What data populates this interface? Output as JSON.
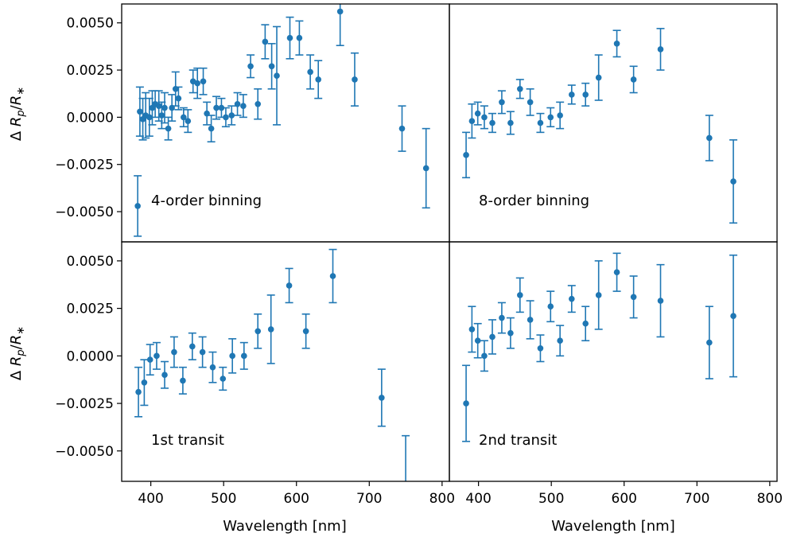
{
  "chart_data": {
    "type": "scatter",
    "layout": "2x2 grid, shared axes",
    "xlabel": "Wavelength [nm]",
    "ylabel": "Δ R_p/R_*",
    "xlim": [
      360,
      810
    ],
    "ylim": [
      -0.0066,
      0.006
    ],
    "xticks": [
      400,
      500,
      600,
      700,
      800
    ],
    "yticks": [
      0.005,
      0.0025,
      0.0,
      -0.0025,
      -0.005
    ],
    "ytick_labels": [
      "0.0050",
      "0.0025",
      "0.0000",
      "−0.0025",
      "−0.0050"
    ],
    "color": "#1f77b4",
    "panels": [
      {
        "label": "4-order binning",
        "points": [
          [
            382,
            -0.0047,
            0.0016
          ],
          [
            385,
            0.0003,
            0.0013
          ],
          [
            389,
            -0.0001,
            0.0011
          ],
          [
            393,
            0.0001,
            0.0012
          ],
          [
            398,
            0.0,
            0.001
          ],
          [
            402,
            0.0005,
            0.0009
          ],
          [
            406,
            0.0007,
            0.0007
          ],
          [
            411,
            0.0006,
            0.0008
          ],
          [
            415,
            0.0001,
            0.0007
          ],
          [
            419,
            0.0005,
            0.0008
          ],
          [
            424,
            -0.0006,
            0.0006
          ],
          [
            429,
            0.0005,
            0.0007
          ],
          [
            434,
            0.0015,
            0.0009
          ],
          [
            438,
            0.001,
            0.0006
          ],
          [
            445,
            0.0,
            0.0005
          ],
          [
            451,
            -0.0002,
            0.0006
          ],
          [
            458,
            0.0019,
            0.0006
          ],
          [
            464,
            0.0018,
            0.0008
          ],
          [
            472,
            0.0019,
            0.0007
          ],
          [
            477,
            0.0002,
            0.0006
          ],
          [
            483,
            -0.0006,
            0.0007
          ],
          [
            490,
            0.0005,
            0.0006
          ],
          [
            497,
            0.0005,
            0.0005
          ],
          [
            503,
            0.0,
            0.0005
          ],
          [
            511,
            0.0001,
            0.0005
          ],
          [
            519,
            0.0007,
            0.0006
          ],
          [
            527,
            0.0006,
            0.0006
          ],
          [
            537,
            0.0027,
            0.0006
          ],
          [
            547,
            0.0007,
            0.0008
          ],
          [
            557,
            0.004,
            0.0009
          ],
          [
            566,
            0.0027,
            0.0012
          ],
          [
            573,
            0.0022,
            0.0026
          ],
          [
            591,
            0.0042,
            0.0011
          ],
          [
            604,
            0.0042,
            0.0009
          ],
          [
            619,
            0.0024,
            0.0009
          ],
          [
            630,
            0.002,
            0.001
          ],
          [
            660,
            0.0056,
            0.0018
          ],
          [
            680,
            0.002,
            0.0014
          ],
          [
            745,
            -0.0006,
            0.0012
          ],
          [
            778,
            -0.0027,
            0.0021
          ]
        ]
      },
      {
        "label": "8-order binning",
        "points": [
          [
            383,
            -0.002,
            0.0012
          ],
          [
            391,
            -0.0002,
            0.0009
          ],
          [
            399,
            0.0002,
            0.0006
          ],
          [
            408,
            0.0,
            0.0006
          ],
          [
            419,
            -0.0003,
            0.0005
          ],
          [
            432,
            0.0008,
            0.0006
          ],
          [
            444,
            -0.0003,
            0.0006
          ],
          [
            457,
            0.0015,
            0.0005
          ],
          [
            471,
            0.0008,
            0.0007
          ],
          [
            485,
            -0.0003,
            0.0005
          ],
          [
            499,
            0.0,
            0.0005
          ],
          [
            512,
            0.0001,
            0.0007
          ],
          [
            528,
            0.0012,
            0.0005
          ],
          [
            547,
            0.0012,
            0.0006
          ],
          [
            565,
            0.0021,
            0.0012
          ],
          [
            590,
            0.0039,
            0.0007
          ],
          [
            613,
            0.002,
            0.0007
          ],
          [
            650,
            0.0036,
            0.0011
          ],
          [
            717,
            -0.0011,
            0.0012
          ],
          [
            750,
            -0.0034,
            0.0022
          ]
        ]
      },
      {
        "label": "1st transit",
        "points": [
          [
            383,
            -0.0019,
            0.0013
          ],
          [
            391,
            -0.0014,
            0.0012
          ],
          [
            399,
            -0.0002,
            0.0008
          ],
          [
            408,
            0.0,
            0.0007
          ],
          [
            419,
            -0.001,
            0.0007
          ],
          [
            432,
            0.0002,
            0.0008
          ],
          [
            444,
            -0.0013,
            0.0007
          ],
          [
            457,
            0.0005,
            0.0007
          ],
          [
            471,
            0.0002,
            0.0008
          ],
          [
            485,
            -0.0006,
            0.0008
          ],
          [
            499,
            -0.0012,
            0.0006
          ],
          [
            512,
            0.0,
            0.0009
          ],
          [
            528,
            0.0,
            0.0007
          ],
          [
            547,
            0.0013,
            0.0009
          ],
          [
            565,
            0.0014,
            0.0018
          ],
          [
            590,
            0.0037,
            0.0009
          ],
          [
            613,
            0.0013,
            0.0009
          ],
          [
            650,
            0.0042,
            0.0014
          ],
          [
            717,
            -0.0022,
            0.0015
          ],
          [
            750,
            -0.0069,
            0.0027
          ]
        ]
      },
      {
        "label": "2nd transit",
        "points": [
          [
            383,
            -0.0025,
            0.002
          ],
          [
            391,
            0.0014,
            0.0012
          ],
          [
            399,
            0.0008,
            0.0009
          ],
          [
            408,
            0.0,
            0.0008
          ],
          [
            419,
            0.001,
            0.0009
          ],
          [
            432,
            0.002,
            0.0008
          ],
          [
            444,
            0.0012,
            0.0008
          ],
          [
            457,
            0.0032,
            0.0009
          ],
          [
            471,
            0.0019,
            0.001
          ],
          [
            485,
            0.0004,
            0.0007
          ],
          [
            499,
            0.0026,
            0.0008
          ],
          [
            512,
            0.0008,
            0.0008
          ],
          [
            528,
            0.003,
            0.0007
          ],
          [
            547,
            0.0017,
            0.0009
          ],
          [
            565,
            0.0032,
            0.0018
          ],
          [
            590,
            0.0044,
            0.001
          ],
          [
            613,
            0.0031,
            0.0011
          ],
          [
            650,
            0.0029,
            0.0019
          ],
          [
            717,
            0.0007,
            0.0019
          ],
          [
            750,
            0.0021,
            0.0032
          ]
        ]
      }
    ]
  }
}
